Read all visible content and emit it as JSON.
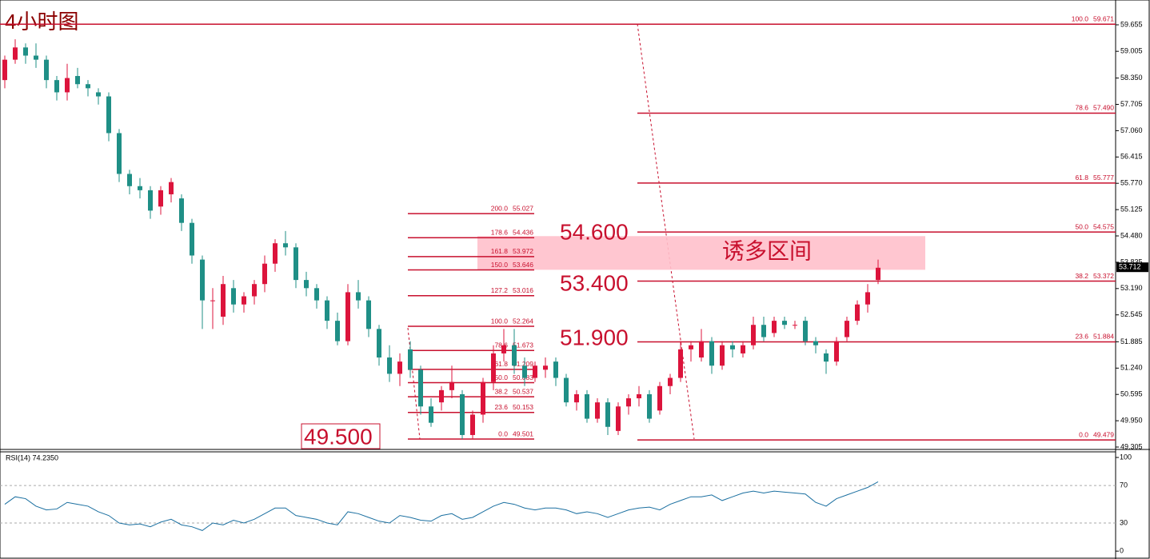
{
  "chart_data": {
    "type": "candlestick",
    "title": "4小时图",
    "up_color": "#dc143c",
    "down_color": "#1f8f86",
    "ylim": [
      49.266,
      60.263
    ],
    "yticks": [
      {
        "value": 59.655,
        "label": "59.655"
      },
      {
        "value": 59.005,
        "label": "59.005"
      },
      {
        "value": 58.35,
        "label": "58.350"
      },
      {
        "value": 57.705,
        "label": "57.705"
      },
      {
        "value": 57.06,
        "label": "57.060"
      },
      {
        "value": 56.415,
        "label": "56.415"
      },
      {
        "value": 55.77,
        "label": "55.770"
      },
      {
        "value": 55.125,
        "label": "55.125"
      },
      {
        "value": 54.48,
        "label": "54.480"
      },
      {
        "value": 53.835,
        "label": "53.835"
      },
      {
        "value": 53.19,
        "label": "53.190"
      },
      {
        "value": 52.545,
        "label": "52.545"
      },
      {
        "value": 51.885,
        "label": "51.885"
      },
      {
        "value": 51.24,
        "label": "51.240"
      },
      {
        "value": 50.595,
        "label": "50.595"
      },
      {
        "value": 49.95,
        "label": "49.950"
      },
      {
        "value": 49.305,
        "label": "49.305"
      }
    ],
    "last_price": 53.712,
    "candles": [
      [
        58.3,
        58.9,
        58.1,
        58.8
      ],
      [
        58.8,
        59.3,
        58.7,
        59.1
      ],
      [
        59.1,
        59.2,
        58.7,
        58.9
      ],
      [
        58.9,
        59.2,
        58.6,
        58.8
      ],
      [
        58.8,
        58.9,
        58.1,
        58.3
      ],
      [
        58.3,
        58.4,
        57.8,
        58.0
      ],
      [
        58.0,
        58.7,
        57.8,
        58.35
      ],
      [
        58.4,
        58.6,
        58.1,
        58.2
      ],
      [
        58.2,
        58.3,
        57.9,
        58.1
      ],
      [
        58.0,
        58.1,
        57.7,
        57.9
      ],
      [
        57.9,
        58.0,
        56.8,
        57.0
      ],
      [
        57.0,
        57.1,
        55.8,
        56.0
      ],
      [
        56.0,
        56.1,
        55.5,
        55.7
      ],
      [
        55.7,
        55.9,
        55.4,
        55.6
      ],
      [
        55.6,
        55.7,
        54.9,
        55.1
      ],
      [
        55.2,
        55.7,
        55.0,
        55.6
      ],
      [
        55.5,
        55.9,
        55.3,
        55.8
      ],
      [
        55.4,
        55.5,
        54.6,
        54.8
      ],
      [
        54.8,
        54.9,
        53.8,
        54.0
      ],
      [
        53.9,
        54.0,
        52.2,
        52.9
      ],
      [
        52.9,
        53.2,
        52.2,
        52.9
      ],
      [
        52.5,
        53.5,
        52.3,
        53.3
      ],
      [
        53.2,
        53.4,
        52.6,
        52.8
      ],
      [
        52.8,
        53.1,
        52.6,
        53.0
      ],
      [
        53.0,
        53.4,
        52.8,
        53.3
      ],
      [
        53.3,
        54.0,
        53.1,
        53.8
      ],
      [
        53.8,
        54.4,
        53.6,
        54.3
      ],
      [
        54.3,
        54.6,
        54.0,
        54.2
      ],
      [
        54.2,
        54.3,
        53.2,
        53.4
      ],
      [
        53.4,
        53.6,
        53.0,
        53.2
      ],
      [
        53.2,
        53.3,
        52.7,
        52.9
      ],
      [
        52.9,
        53.0,
        52.2,
        52.4
      ],
      [
        52.4,
        52.6,
        51.8,
        51.9
      ],
      [
        51.9,
        53.3,
        51.8,
        53.1
      ],
      [
        53.1,
        53.4,
        52.7,
        52.9
      ],
      [
        52.9,
        53.0,
        52.0,
        52.2
      ],
      [
        52.2,
        52.3,
        51.3,
        51.5
      ],
      [
        51.5,
        51.8,
        50.9,
        51.1
      ],
      [
        51.1,
        51.6,
        50.8,
        51.4
      ],
      [
        51.7,
        51.9,
        51.0,
        51.2
      ],
      [
        51.2,
        51.3,
        50.1,
        50.3
      ],
      [
        50.3,
        50.5,
        49.8,
        49.9
      ],
      [
        50.4,
        50.8,
        50.2,
        50.7
      ],
      [
        50.7,
        51.3,
        50.5,
        50.9
      ],
      [
        50.6,
        50.7,
        49.5,
        49.6
      ],
      [
        49.6,
        50.2,
        49.5,
        50.1
      ],
      [
        50.1,
        51.0,
        49.9,
        50.9
      ],
      [
        50.9,
        51.8,
        50.7,
        51.6
      ],
      [
        51.6,
        52.2,
        51.4,
        51.8
      ],
      [
        51.8,
        52.2,
        51.1,
        51.3
      ],
      [
        51.3,
        51.5,
        50.8,
        51.0
      ],
      [
        51.0,
        51.4,
        50.9,
        51.3
      ],
      [
        51.2,
        51.5,
        51.0,
        51.3
      ],
      [
        51.4,
        51.5,
        50.8,
        51.0
      ],
      [
        51.0,
        51.1,
        50.3,
        50.4
      ],
      [
        50.4,
        50.7,
        50.2,
        50.6
      ],
      [
        50.6,
        50.7,
        49.9,
        50.0
      ],
      [
        50.0,
        50.5,
        49.9,
        50.4
      ],
      [
        50.4,
        50.5,
        49.6,
        49.8
      ],
      [
        49.7,
        50.4,
        49.6,
        50.3
      ],
      [
        50.3,
        50.6,
        50.1,
        50.5
      ],
      [
        50.5,
        50.8,
        50.3,
        50.6
      ],
      [
        50.6,
        50.7,
        49.9,
        50.0
      ],
      [
        50.2,
        50.9,
        50.1,
        50.8
      ],
      [
        50.8,
        51.1,
        50.6,
        51.0
      ],
      [
        51.0,
        51.9,
        50.9,
        51.7
      ],
      [
        51.7,
        51.9,
        51.4,
        51.8
      ],
      [
        51.5,
        52.2,
        51.4,
        51.9
      ],
      [
        51.9,
        52.0,
        51.1,
        51.3
      ],
      [
        51.3,
        51.9,
        51.2,
        51.8
      ],
      [
        51.8,
        51.9,
        51.5,
        51.7
      ],
      [
        51.6,
        51.9,
        51.5,
        51.8
      ],
      [
        51.8,
        52.5,
        51.7,
        52.3
      ],
      [
        52.3,
        52.5,
        51.9,
        52.0
      ],
      [
        52.1,
        52.5,
        52.0,
        52.4
      ],
      [
        52.4,
        52.5,
        52.2,
        52.3
      ],
      [
        52.3,
        52.4,
        52.2,
        52.3
      ],
      [
        52.4,
        52.5,
        51.8,
        51.9
      ],
      [
        51.9,
        52.0,
        51.6,
        51.8
      ],
      [
        51.6,
        51.7,
        51.1,
        51.4
      ],
      [
        51.4,
        52.0,
        51.3,
        51.9
      ],
      [
        52.0,
        52.5,
        51.9,
        52.4
      ],
      [
        52.4,
        52.9,
        52.3,
        52.8
      ],
      [
        52.8,
        53.3,
        52.6,
        53.1
      ],
      [
        53.4,
        53.9,
        53.3,
        53.7
      ]
    ],
    "fib_right": [
      {
        "level": "100.0",
        "price": {
          "value": 59.671,
          "label": "59.671"
        }
      },
      {
        "level": "78.6",
        "price": {
          "value": 57.49,
          "label": "57.490"
        }
      },
      {
        "level": "61.8",
        "price": {
          "value": 55.777,
          "label": "55.777"
        }
      },
      {
        "level": "50.0",
        "price": {
          "value": 54.575,
          "label": "54.575"
        }
      },
      {
        "level": "38.2",
        "price": {
          "value": 53.372,
          "label": "53.372"
        }
      },
      {
        "level": "23.6",
        "price": {
          "value": 51.884,
          "label": "51.884"
        }
      },
      {
        "level": "0.0",
        "price": {
          "value": 49.479,
          "label": "49.479"
        }
      }
    ],
    "fib_left": [
      {
        "level": "200.0",
        "price": {
          "value": 55.027,
          "label": "55.027"
        }
      },
      {
        "level": "178.6",
        "price": {
          "value": 54.436,
          "label": "54.436"
        }
      },
      {
        "level": "161.8",
        "price": {
          "value": 53.972,
          "label": "53.972"
        }
      },
      {
        "level": "150.0",
        "price": {
          "value": 53.646,
          "label": "53.646"
        }
      },
      {
        "level": "127.2",
        "price": {
          "value": 53.016,
          "label": "53.016"
        }
      },
      {
        "level": "100.0",
        "price": {
          "value": 52.264,
          "label": "52.264"
        }
      },
      {
        "level": "78.6",
        "price": {
          "value": 51.673,
          "label": "51.673"
        }
      },
      {
        "level": "61.8",
        "price": {
          "value": 51.209,
          "label": "51.209"
        }
      },
      {
        "level": "50.0",
        "price": {
          "value": 50.883,
          "label": "50.883"
        }
      },
      {
        "level": "38.2",
        "price": {
          "value": 50.537,
          "label": "50.537"
        }
      },
      {
        "level": "23.6",
        "price": {
          "value": 50.153,
          "label": "50.153"
        }
      },
      {
        "level": "0.0",
        "price": {
          "value": 49.501,
          "label": "49.501"
        }
      }
    ],
    "zone": {
      "from": 53.65,
      "to": 54.475,
      "label": "诱多区间"
    },
    "level_texts": [
      "54.600",
      "53.400",
      "51.900",
      "49.500"
    ],
    "rsi": {
      "label": "RSI(14) 74.2350",
      "color": "#1a6fa0",
      "ylim": [
        -5,
        106
      ],
      "yticks": [
        0,
        30,
        70,
        100
      ],
      "values": [
        50,
        58,
        56,
        48,
        44,
        45,
        52,
        50,
        48,
        42,
        38,
        30,
        28,
        29,
        26,
        31,
        34,
        28,
        26,
        22,
        30,
        28,
        33,
        30,
        34,
        40,
        46,
        46,
        38,
        36,
        34,
        30,
        28,
        42,
        40,
        36,
        32,
        30,
        38,
        36,
        33,
        32,
        38,
        40,
        34,
        36,
        42,
        48,
        52,
        50,
        46,
        44,
        46,
        46,
        44,
        40,
        42,
        40,
        36,
        40,
        44,
        46,
        47,
        44,
        50,
        54,
        58,
        58,
        60,
        54,
        58,
        62,
        64,
        62,
        64,
        63,
        62,
        61,
        52,
        48,
        56,
        60,
        64,
        68,
        74
      ]
    }
  }
}
